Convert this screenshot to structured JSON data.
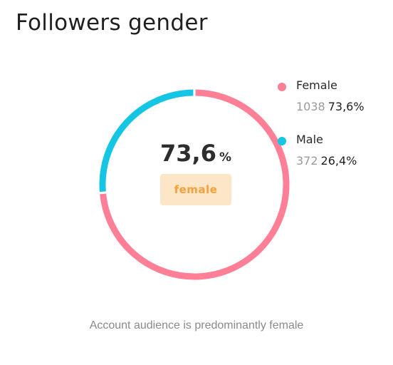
{
  "header": {
    "title": "Followers gender"
  },
  "center": {
    "value": "73,6",
    "unit": "%",
    "badge": "female"
  },
  "legend": [
    {
      "name": "Female",
      "count": "1038",
      "percent": "73,6%",
      "color": "#ff7f97"
    },
    {
      "name": "Male",
      "count": "372",
      "percent": "26,4%",
      "color": "#14c6e3"
    }
  ],
  "footer": {
    "caption": "Account audience is predominantly female"
  },
  "chart_data": {
    "type": "pie",
    "title": "Followers gender",
    "categories": [
      "Female",
      "Male"
    ],
    "values": [
      73.6,
      26.4
    ],
    "counts": [
      1038,
      372
    ],
    "colors": [
      "#ff7f97",
      "#14c6e3"
    ],
    "legend": "right"
  }
}
